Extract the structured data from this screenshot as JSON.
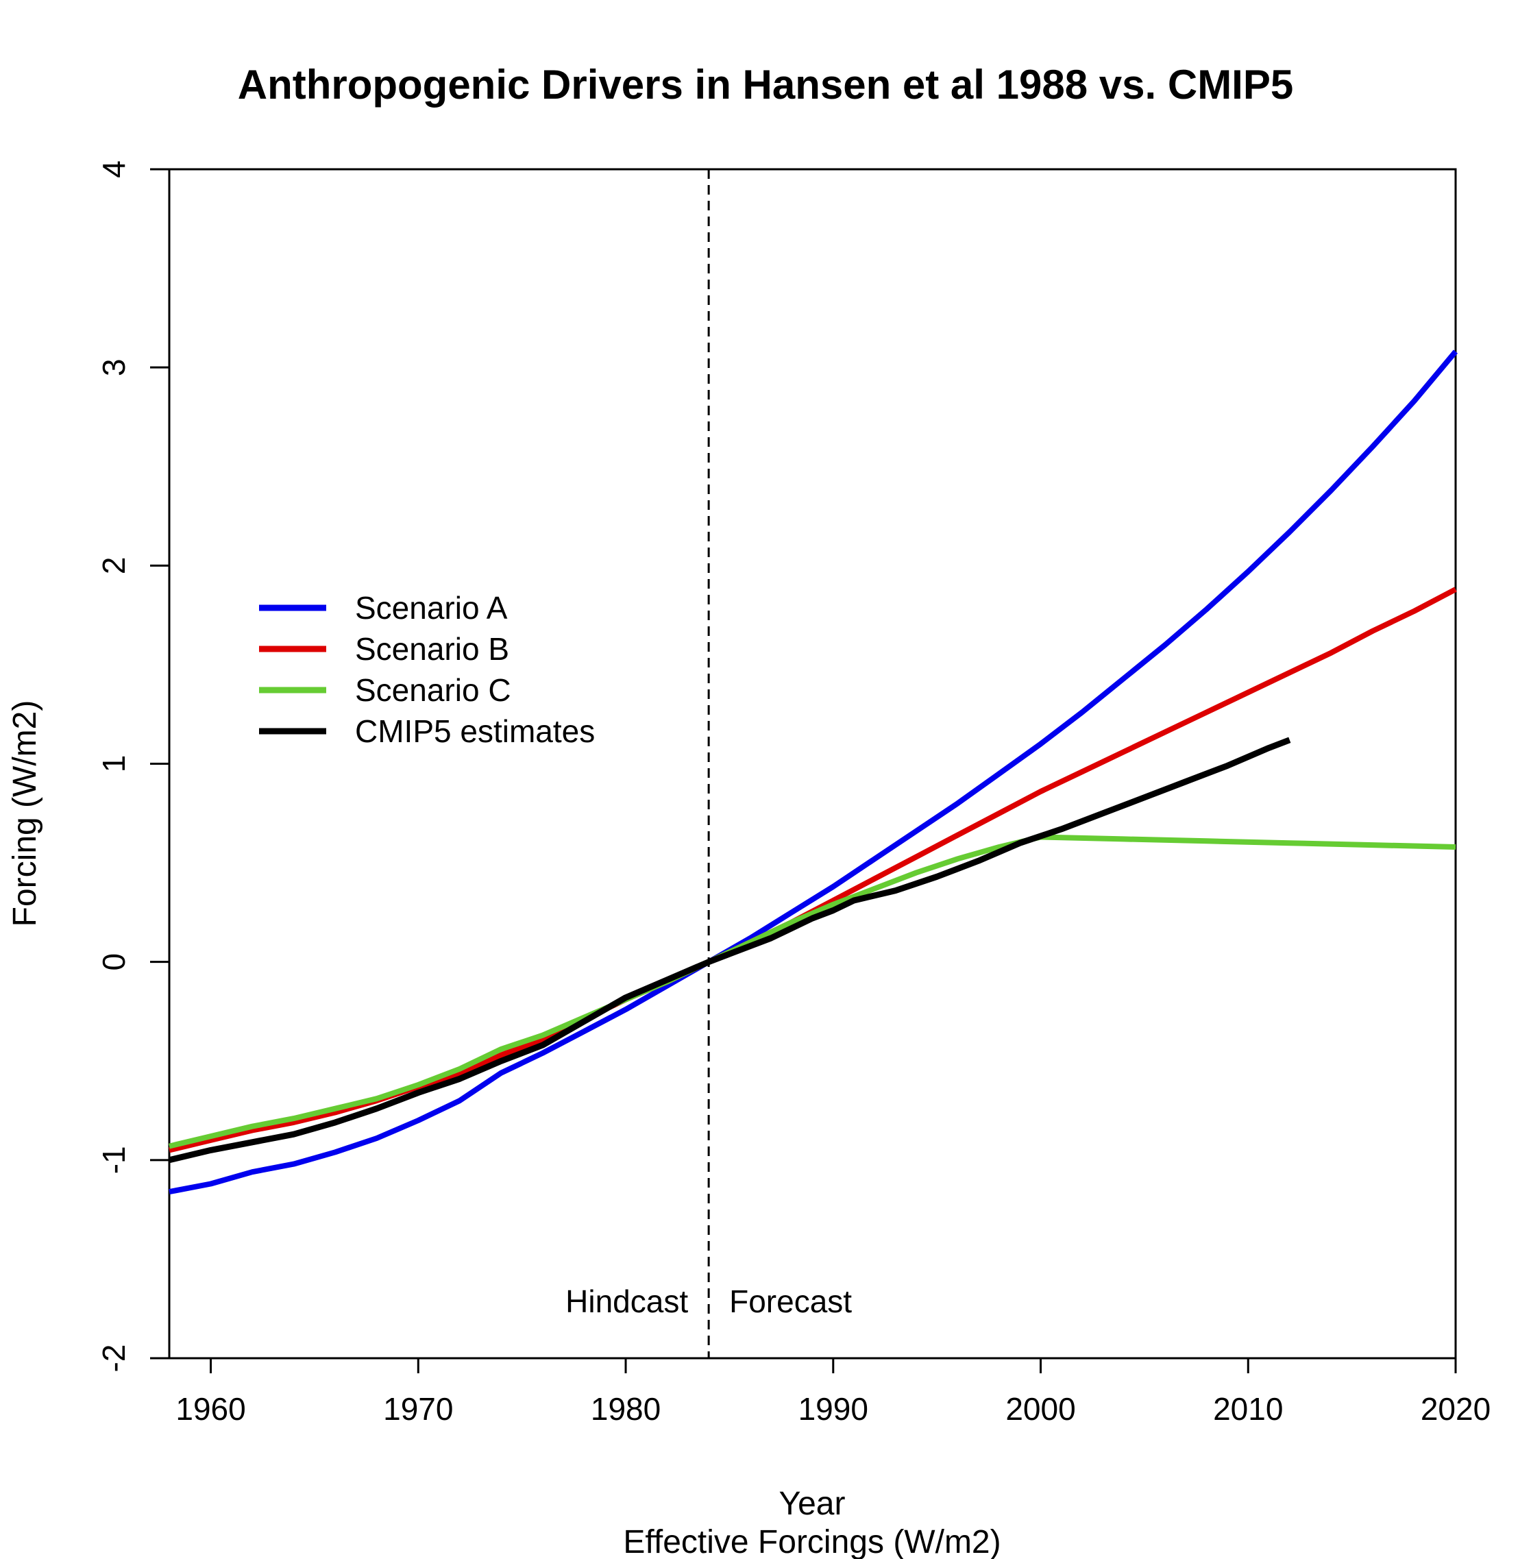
{
  "chart_data": {
    "type": "line",
    "title": "Anthropogenic Drivers in Hansen et al 1988 vs. CMIP5",
    "xlabel": "Year",
    "subtitle": "Effective Forcings (W/m2)",
    "ylabel": "Forcing (W/m2)",
    "xlim": [
      1958,
      2020
    ],
    "ylim": [
      -2,
      4
    ],
    "x_ticks": [
      1960,
      1970,
      1980,
      1990,
      2000,
      2010,
      2020
    ],
    "y_ticks": [
      -2,
      -1,
      0,
      1,
      2,
      3,
      4
    ],
    "x_tick_labels": [
      "1960",
      "1970",
      "1980",
      "1990",
      "2000",
      "2010",
      "2020"
    ],
    "y_tick_labels": [
      "-2",
      "-1",
      "0",
      "1",
      "2",
      "3",
      "4"
    ],
    "grid": false,
    "legend_position": "left",
    "reference_line": {
      "x": 1984,
      "style": "dashed",
      "labels": [
        "Hindcast",
        "Forecast"
      ]
    },
    "series": [
      {
        "name": "Scenario A",
        "color": "#0000ee",
        "x": [
          1958,
          1960,
          1962,
          1964,
          1966,
          1968,
          1970,
          1972,
          1974,
          1976,
          1978,
          1980,
          1982,
          1984,
          1986,
          1988,
          1990,
          1992,
          1994,
          1996,
          1998,
          2000,
          2002,
          2004,
          2006,
          2008,
          2010,
          2012,
          2014,
          2016,
          2018,
          2020
        ],
        "y": [
          -1.16,
          -1.12,
          -1.06,
          -1.02,
          -0.96,
          -0.89,
          -0.8,
          -0.7,
          -0.56,
          -0.46,
          -0.35,
          -0.24,
          -0.12,
          0.0,
          0.12,
          0.25,
          0.38,
          0.52,
          0.66,
          0.8,
          0.95,
          1.1,
          1.26,
          1.43,
          1.6,
          1.78,
          1.97,
          2.17,
          2.38,
          2.6,
          2.83,
          3.08
        ]
      },
      {
        "name": "Scenario B",
        "color": "#dd0000",
        "x": [
          1958,
          1960,
          1962,
          1964,
          1966,
          1968,
          1970,
          1972,
          1974,
          1976,
          1978,
          1980,
          1982,
          1984,
          1986,
          1988,
          1990,
          1992,
          1994,
          1996,
          1998,
          2000,
          2002,
          2004,
          2006,
          2008,
          2010,
          2012,
          2014,
          2016,
          2018,
          2020
        ],
        "y": [
          -0.95,
          -0.9,
          -0.85,
          -0.81,
          -0.76,
          -0.7,
          -0.63,
          -0.56,
          -0.47,
          -0.39,
          -0.29,
          -0.19,
          -0.1,
          0.0,
          0.1,
          0.2,
          0.31,
          0.42,
          0.53,
          0.64,
          0.75,
          0.86,
          0.96,
          1.06,
          1.16,
          1.26,
          1.36,
          1.46,
          1.56,
          1.67,
          1.77,
          1.88
        ]
      },
      {
        "name": "Scenario C",
        "color": "#66cc33",
        "x": [
          1958,
          1960,
          1962,
          1964,
          1966,
          1968,
          1970,
          1972,
          1974,
          1976,
          1978,
          1980,
          1982,
          1984,
          1986,
          1988,
          1990,
          1992,
          1994,
          1996,
          1998,
          2000,
          2004,
          2008,
          2012,
          2016,
          2020
        ],
        "y": [
          -0.93,
          -0.88,
          -0.83,
          -0.79,
          -0.74,
          -0.69,
          -0.62,
          -0.54,
          -0.44,
          -0.37,
          -0.28,
          -0.19,
          -0.1,
          0.0,
          0.1,
          0.2,
          0.29,
          0.37,
          0.45,
          0.52,
          0.58,
          0.63,
          0.62,
          0.61,
          0.6,
          0.59,
          0.58
        ]
      },
      {
        "name": "CMIP5 estimates",
        "color": "#000000",
        "x": [
          1958,
          1960,
          1962,
          1964,
          1966,
          1968,
          1970,
          1972,
          1974,
          1976,
          1978,
          1980,
          1982,
          1984,
          1985,
          1987,
          1989,
          1990,
          1991,
          1993,
          1995,
          1997,
          1999,
          2001,
          2003,
          2005,
          2007,
          2009,
          2011,
          2012
        ],
        "y": [
          -1.0,
          -0.95,
          -0.91,
          -0.87,
          -0.81,
          -0.74,
          -0.66,
          -0.59,
          -0.5,
          -0.42,
          -0.3,
          -0.18,
          -0.09,
          0.0,
          0.04,
          0.12,
          0.22,
          0.26,
          0.31,
          0.36,
          0.43,
          0.51,
          0.6,
          0.67,
          0.75,
          0.83,
          0.91,
          0.99,
          1.08,
          1.12
        ]
      }
    ]
  }
}
